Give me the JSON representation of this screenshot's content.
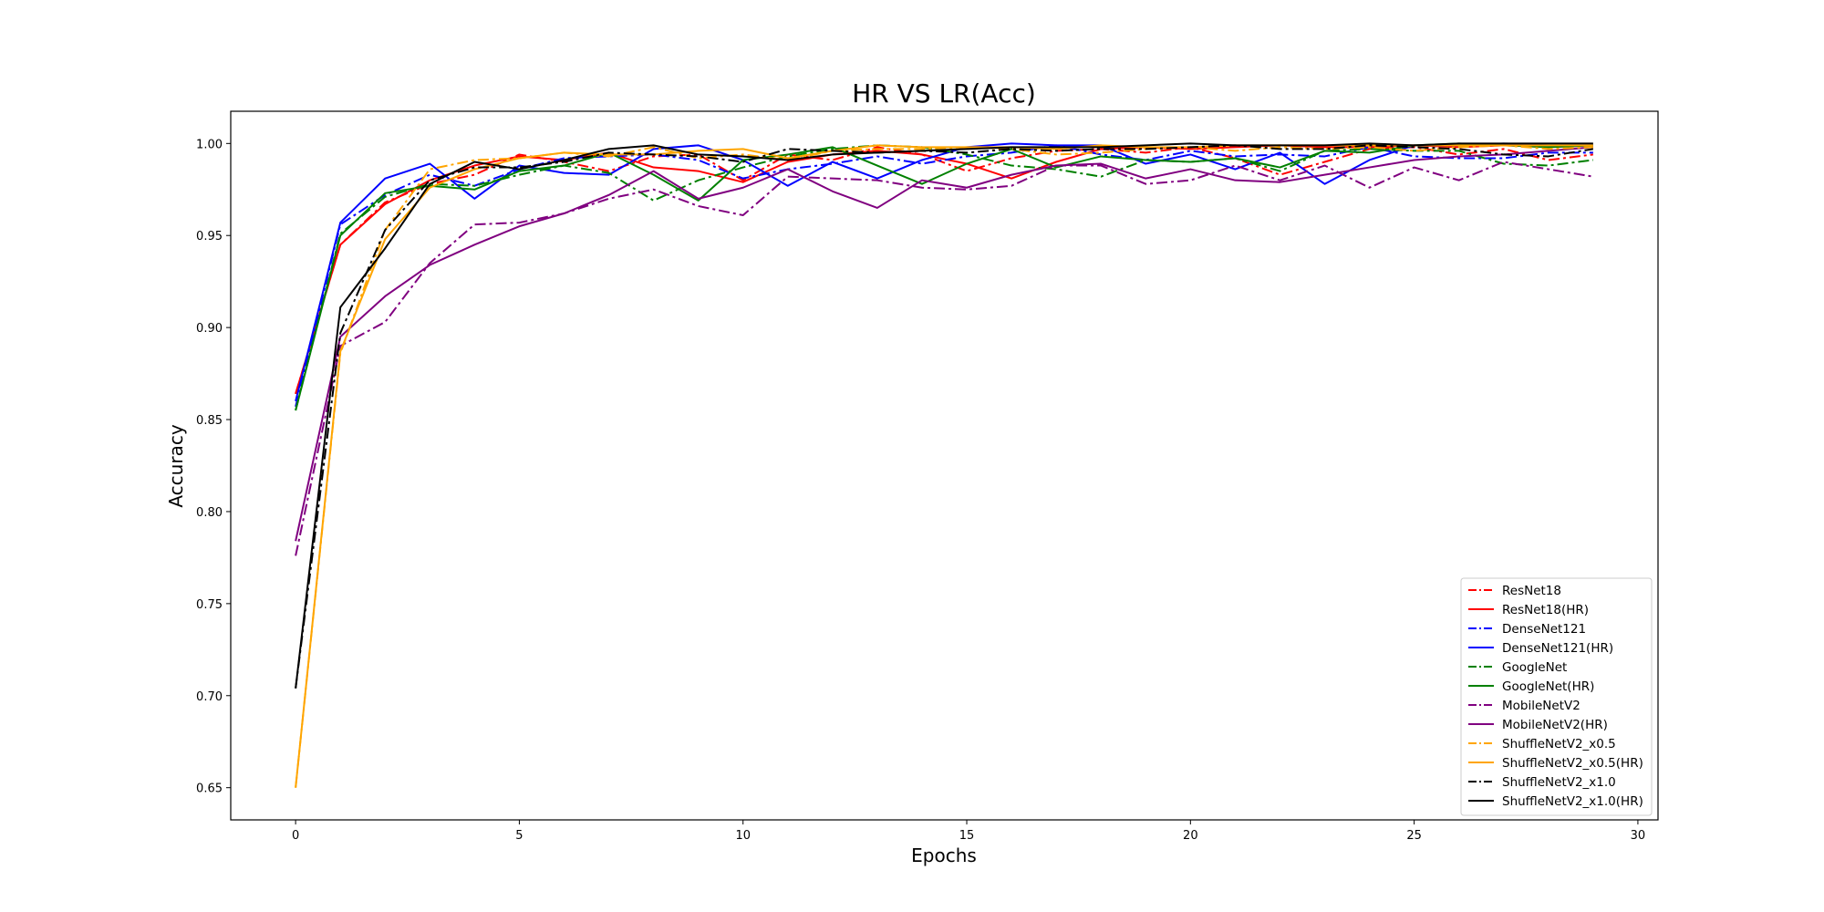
{
  "chart_data": {
    "type": "line",
    "title": "HR VS LR(Acc)",
    "xlabel": "Epochs",
    "ylabel": "Accuracy",
    "xlim": [
      -1.45,
      30.45
    ],
    "ylim": [
      0.6325,
      1.0175
    ],
    "xticks": [
      0,
      5,
      10,
      15,
      20,
      25,
      30
    ],
    "yticks": [
      0.65,
      0.7,
      0.75,
      0.8,
      0.85,
      0.9,
      0.95,
      1.0
    ],
    "ytick_labels": [
      "0.65",
      "0.70",
      "0.75",
      "0.80",
      "0.85",
      "0.90",
      "0.95",
      "1.00"
    ],
    "grid": false,
    "legend_position": "lower-right",
    "x": [
      0,
      1,
      2,
      3,
      4,
      5,
      6,
      7,
      8,
      9,
      10,
      11,
      12,
      13,
      14,
      15,
      16,
      17,
      18,
      19,
      20,
      21,
      22,
      23,
      24,
      25,
      26,
      27,
      28,
      29
    ],
    "series": [
      {
        "name": "ResNet18",
        "color": "#ff0000",
        "dash": "dashdot",
        "values": [
          0.864,
          0.945,
          0.968,
          0.978,
          0.983,
          0.994,
          0.99,
          0.985,
          0.993,
          0.994,
          0.98,
          0.994,
          0.991,
          0.998,
          0.994,
          0.985,
          0.992,
          0.996,
          0.997,
          0.995,
          0.998,
          0.992,
          0.983,
          0.99,
          0.997,
          0.998,
          0.994,
          0.997,
          0.991,
          0.994
        ]
      },
      {
        "name": "ResNet18(HR)",
        "color": "#ff0000",
        "dash": "solid",
        "values": [
          0.864,
          0.945,
          0.967,
          0.98,
          0.988,
          0.993,
          0.991,
          0.995,
          0.987,
          0.985,
          0.979,
          0.99,
          0.994,
          0.996,
          0.994,
          0.989,
          0.981,
          0.99,
          0.997,
          0.998,
          0.997,
          0.998,
          0.999,
          0.998,
          0.998,
          0.999,
          0.998,
          0.999,
          0.998,
          0.999
        ]
      },
      {
        "name": "DenseNet121",
        "color": "#0000ff",
        "dash": "dashdot",
        "values": [
          0.857,
          0.956,
          0.972,
          0.983,
          0.977,
          0.986,
          0.992,
          0.993,
          0.994,
          0.991,
          0.981,
          0.986,
          0.989,
          0.993,
          0.989,
          0.993,
          0.995,
          0.999,
          0.994,
          0.991,
          0.996,
          0.993,
          0.994,
          0.993,
          0.998,
          0.993,
          0.992,
          0.992,
          0.995,
          0.995
        ]
      },
      {
        "name": "DenseNet121(HR)",
        "color": "#0000ff",
        "dash": "solid",
        "values": [
          0.86,
          0.957,
          0.981,
          0.989,
          0.97,
          0.988,
          0.984,
          0.983,
          0.997,
          0.999,
          0.991,
          0.977,
          0.99,
          0.981,
          0.991,
          0.998,
          1.0,
          0.999,
          0.999,
          0.989,
          0.994,
          0.986,
          0.995,
          0.978,
          0.991,
          0.999,
          0.999,
          1.0,
          0.999,
          0.999
        ]
      },
      {
        "name": "GoogleNet",
        "color": "#008000",
        "dash": "dashdot",
        "values": [
          0.855,
          0.951,
          0.971,
          0.978,
          0.977,
          0.983,
          0.988,
          0.984,
          0.969,
          0.98,
          0.987,
          0.993,
          0.997,
          0.999,
          0.998,
          0.994,
          0.988,
          0.986,
          0.982,
          0.991,
          0.99,
          0.992,
          0.985,
          0.996,
          0.997,
          0.996,
          0.996,
          0.989,
          0.988,
          0.991
        ]
      },
      {
        "name": "GoogleNet(HR)",
        "color": "#008000",
        "dash": "solid",
        "values": [
          0.855,
          0.95,
          0.973,
          0.977,
          0.975,
          0.985,
          0.988,
          0.995,
          0.983,
          0.969,
          0.991,
          0.994,
          0.998,
          0.988,
          0.978,
          0.989,
          0.997,
          0.987,
          0.993,
          0.991,
          0.99,
          0.992,
          0.987,
          0.996,
          0.995,
          0.999,
          1.0,
          0.999,
          0.998,
          0.999
        ]
      },
      {
        "name": "MobileNetV2",
        "color": "#800080",
        "dash": "dashdot",
        "values": [
          0.776,
          0.89,
          0.903,
          0.935,
          0.956,
          0.957,
          0.962,
          0.97,
          0.975,
          0.966,
          0.961,
          0.982,
          0.981,
          0.98,
          0.976,
          0.975,
          0.977,
          0.988,
          0.988,
          0.978,
          0.98,
          0.988,
          0.98,
          0.988,
          0.976,
          0.987,
          0.98,
          0.99,
          0.986,
          0.982
        ]
      },
      {
        "name": "MobileNetV2(HR)",
        "color": "#800080",
        "dash": "solid",
        "values": [
          0.784,
          0.895,
          0.917,
          0.934,
          0.945,
          0.955,
          0.962,
          0.972,
          0.985,
          0.97,
          0.976,
          0.986,
          0.974,
          0.965,
          0.98,
          0.976,
          0.983,
          0.988,
          0.989,
          0.981,
          0.986,
          0.98,
          0.979,
          0.983,
          0.987,
          0.991,
          0.993,
          0.994,
          0.996,
          0.998
        ]
      },
      {
        "name": "ShuffleNetV2_x0.5",
        "color": "#ffa500",
        "dash": "dashdot",
        "values": [
          0.65,
          0.886,
          0.953,
          0.986,
          0.991,
          0.992,
          0.995,
          0.993,
          0.998,
          0.992,
          0.994,
          0.991,
          0.996,
          0.997,
          0.997,
          0.998,
          0.997,
          0.994,
          0.995,
          0.997,
          0.998,
          0.996,
          0.998,
          0.997,
          0.998,
          0.996,
          0.998,
          0.999,
          0.997,
          0.998
        ]
      },
      {
        "name": "ShuffleNetV2_x0.5(HR)",
        "color": "#ffa500",
        "dash": "solid",
        "values": [
          0.65,
          0.887,
          0.948,
          0.976,
          0.986,
          0.992,
          0.995,
          0.994,
          0.994,
          0.996,
          0.997,
          0.992,
          0.996,
          0.999,
          0.998,
          0.998,
          0.998,
          0.997,
          0.999,
          0.998,
          0.998,
          0.999,
          0.999,
          0.999,
          0.999,
          0.999,
          0.999,
          0.999,
          0.999,
          0.999
        ]
      },
      {
        "name": "ShuffleNetV2_x1.0",
        "color": "#000000",
        "dash": "dashdot",
        "values": [
          0.704,
          0.897,
          0.953,
          0.98,
          0.987,
          0.987,
          0.99,
          0.995,
          0.994,
          0.993,
          0.99,
          0.997,
          0.996,
          0.995,
          0.996,
          0.995,
          0.997,
          0.996,
          0.997,
          0.997,
          0.998,
          0.999,
          0.997,
          0.997,
          0.999,
          0.998,
          0.997,
          0.994,
          0.993,
          0.997
        ]
      },
      {
        "name": "ShuffleNetV2_x1.0(HR)",
        "color": "#000000",
        "dash": "solid",
        "values": [
          0.704,
          0.911,
          0.943,
          0.978,
          0.99,
          0.986,
          0.991,
          0.997,
          0.999,
          0.994,
          0.993,
          0.991,
          0.994,
          0.995,
          0.996,
          0.997,
          0.998,
          0.998,
          0.998,
          0.999,
          1.0,
          0.999,
          0.999,
          0.999,
          1.0,
          0.999,
          1.0,
          1.0,
          1.0,
          1.0
        ]
      }
    ]
  }
}
